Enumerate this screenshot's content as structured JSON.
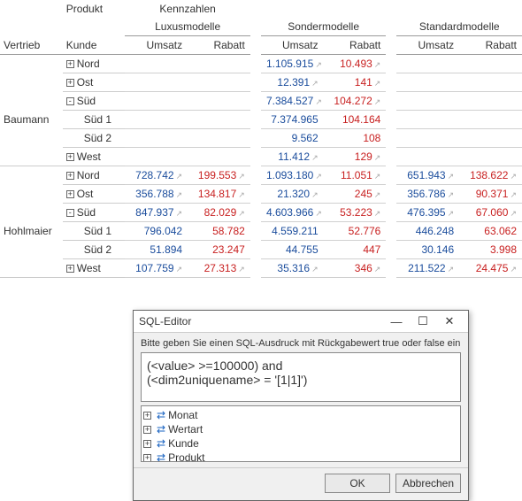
{
  "colors": {
    "blue": "#1a4c9c",
    "red": "#c82020",
    "grid": "#d0d0d0",
    "group_line": "#9a9a9a"
  },
  "pivot": {
    "corner": {
      "produkt": "Produkt",
      "kennzahlen": "Kennzahlen",
      "vertrieb": "Vertrieb",
      "kunde": "Kunde"
    },
    "groups": [
      {
        "label": "Luxusmodelle",
        "umsatz": "Umsatz",
        "rabatt": "Rabatt"
      },
      {
        "label": "Sondermodelle",
        "umsatz": "Umsatz",
        "rabatt": "Rabatt"
      },
      {
        "label": "Standardmodelle",
        "umsatz": "Umsatz",
        "rabatt": "Rabatt"
      }
    ],
    "vertriebs": [
      {
        "name": "Baumann",
        "rows": [
          {
            "exp": "+",
            "label": "Nord",
            "v": [
              "",
              "",
              "1.105.915",
              "10.493",
              "",
              ""
            ]
          },
          {
            "exp": "+",
            "label": "Ost",
            "v": [
              "",
              "",
              "12.391",
              "141",
              "",
              ""
            ]
          },
          {
            "exp": "-",
            "label": "Süd",
            "v": [
              "",
              "",
              "7.384.527",
              "104.272",
              "",
              ""
            ]
          },
          {
            "exp": "",
            "label": "Süd 1",
            "v": [
              "",
              "",
              "7.374.965",
              "104.164",
              "",
              ""
            ]
          },
          {
            "exp": "",
            "label": "Süd 2",
            "v": [
              "",
              "",
              "9.562",
              "108",
              "",
              ""
            ]
          },
          {
            "exp": "+",
            "label": "West",
            "v": [
              "",
              "",
              "11.412",
              "129",
              "",
              ""
            ]
          }
        ]
      },
      {
        "name": "Hohlmaier",
        "rows": [
          {
            "exp": "+",
            "label": "Nord",
            "v": [
              "728.742",
              "199.553",
              "1.093.180",
              "11.051",
              "651.943",
              "138.622"
            ]
          },
          {
            "exp": "+",
            "label": "Ost",
            "v": [
              "356.788",
              "134.817",
              "21.320",
              "245",
              "356.786",
              "90.371"
            ]
          },
          {
            "exp": "-",
            "label": "Süd",
            "v": [
              "847.937",
              "82.029",
              "4.603.966",
              "53.223",
              "476.395",
              "67.060"
            ]
          },
          {
            "exp": "",
            "label": "Süd 1",
            "v": [
              "796.042",
              "58.782",
              "4.559.211",
              "52.776",
              "446.248",
              "63.062"
            ]
          },
          {
            "exp": "",
            "label": "Süd 2",
            "v": [
              "51.894",
              "23.247",
              "44.755",
              "447",
              "30.146",
              "3.998"
            ]
          },
          {
            "exp": "+",
            "label": "West",
            "v": [
              "107.759",
              "27.313",
              "35.316",
              "346",
              "211.522",
              "24.475"
            ]
          }
        ]
      }
    ]
  },
  "dialog": {
    "title": "SQL-Editor",
    "hint": "Bitte geben Sie einen SQL-Ausdruck mit Rückgabewert true oder false ein",
    "expr_l1": "(<value> >=100000) and",
    "expr_l2": "(<dim2uniquename> = '[1|1]')",
    "dims": [
      "Monat",
      "Wertart",
      "Kunde",
      "Produkt"
    ],
    "ok": "OK",
    "cancel": "Abbrechen"
  }
}
